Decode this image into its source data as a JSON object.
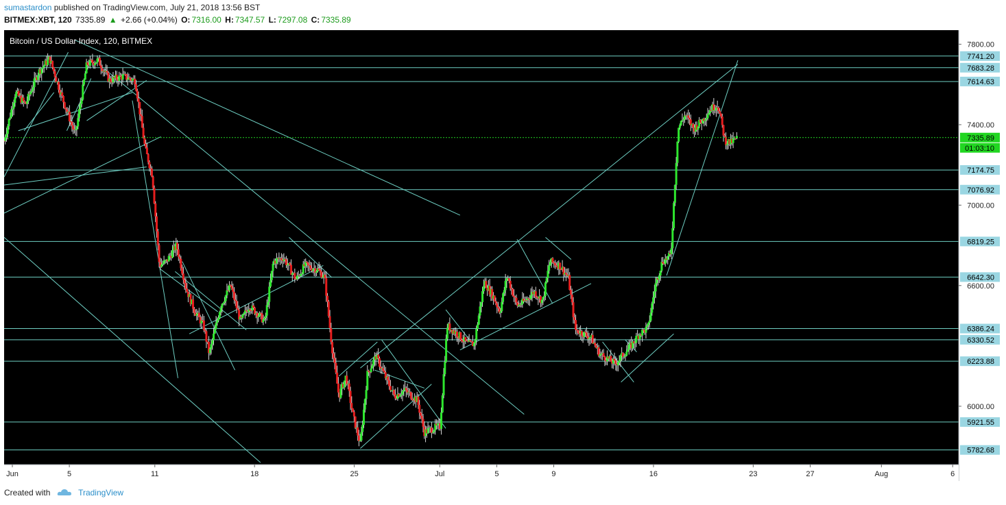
{
  "header": {
    "author": "sumastardon",
    "published_text": "published on TradingView.com, July 21, 2018 13:56 BST",
    "symbol": "BITMEX:XBT, 120",
    "last": "7335.89",
    "change": "+2.66 (+0.04%)",
    "o_label": "O:",
    "o_value": "7316.00",
    "h_label": "H:",
    "h_value": "7347.57",
    "l_label": "L:",
    "l_value": "7297.08",
    "c_label": "C:",
    "c_value": "7335.89"
  },
  "footer": {
    "created_with": "Created with",
    "brand": "TradingView"
  },
  "colors": {
    "background": "#000000",
    "up_candle": "#2ee62e",
    "down_candle": "#e61e1e",
    "wick": "#d8d8d8",
    "trendline": "#6fd0c4",
    "axis_label_bg": "#9ad6e2",
    "last_price_bg": "#22d622"
  },
  "chart_data": {
    "type": "candlestick",
    "title": "Bitcoin / US Dollar Index, 120, BITMEX",
    "ylim": [
      5710,
      7870
    ],
    "price_ticks": [
      "7800.00",
      "7400.00",
      "7000.00",
      "6600.00",
      "6000.00"
    ],
    "date_axis": [
      {
        "label": "Jun",
        "day": 0
      },
      {
        "label": "5",
        "day": 4
      },
      {
        "label": "11",
        "day": 10
      },
      {
        "label": "18",
        "day": 17
      },
      {
        "label": "25",
        "day": 24
      },
      {
        "label": "Jul",
        "day": 30
      },
      {
        "label": "5",
        "day": 34
      },
      {
        "label": "9",
        "day": 38
      },
      {
        "label": "16",
        "day": 45
      },
      {
        "label": "23",
        "day": 52
      },
      {
        "label": "27",
        "day": 56
      },
      {
        "label": "Aug",
        "day": 61
      },
      {
        "label": "6",
        "day": 66
      }
    ],
    "x_range_days": [
      0,
      67
    ],
    "horizontal_levels": [
      {
        "price": 7741.2,
        "label": "7741.20"
      },
      {
        "price": 7683.28,
        "label": "7683.28"
      },
      {
        "price": 7614.63,
        "label": "7614.63"
      },
      {
        "price": 7174.75,
        "label": "7174.75"
      },
      {
        "price": 7076.92,
        "label": "7076.92"
      },
      {
        "price": 6819.25,
        "label": "6819.25"
      },
      {
        "price": 6642.3,
        "label": "6642.30"
      },
      {
        "price": 6386.24,
        "label": "6386.24"
      },
      {
        "price": 6330.52,
        "label": "6330.52"
      },
      {
        "price": 6223.88,
        "label": "6223.88"
      },
      {
        "price": 5921.55,
        "label": "5921.55"
      },
      {
        "price": 5782.68,
        "label": "5782.68"
      }
    ],
    "last_price": {
      "price": 7335.89,
      "label": "7335.89",
      "countdown": "01:03:10"
    },
    "price_path": [
      [
        0.0,
        7320
      ],
      [
        0.8,
        7560
      ],
      [
        1.5,
        7500
      ],
      [
        2.4,
        7660
      ],
      [
        3.2,
        7730
      ],
      [
        4.0,
        7550
      ],
      [
        5.0,
        7350
      ],
      [
        5.8,
        7700
      ],
      [
        6.6,
        7720
      ],
      [
        7.4,
        7620
      ],
      [
        8.3,
        7640
      ],
      [
        9.2,
        7620
      ],
      [
        9.9,
        7280
      ],
      [
        10.4,
        7150
      ],
      [
        10.9,
        6700
      ],
      [
        11.4,
        6720
      ],
      [
        12.1,
        6800
      ],
      [
        12.8,
        6580
      ],
      [
        13.4,
        6470
      ],
      [
        14.0,
        6400
      ],
      [
        14.4,
        6260
      ],
      [
        15.2,
        6500
      ],
      [
        15.9,
        6600
      ],
      [
        16.6,
        6420
      ],
      [
        17.2,
        6500
      ],
      [
        17.8,
        6460
      ],
      [
        18.3,
        6420
      ],
      [
        18.9,
        6720
      ],
      [
        19.6,
        6740
      ],
      [
        20.5,
        6630
      ],
      [
        21.1,
        6700
      ],
      [
        22.0,
        6680
      ],
      [
        22.5,
        6640
      ],
      [
        23.0,
        6300
      ],
      [
        23.5,
        6050
      ],
      [
        24.0,
        6150
      ],
      [
        24.5,
        5950
      ],
      [
        25.0,
        5810
      ],
      [
        25.5,
        6160
      ],
      [
        26.1,
        6250
      ],
      [
        26.8,
        6140
      ],
      [
        27.4,
        6050
      ],
      [
        28.1,
        6080
      ],
      [
        29.0,
        6030
      ],
      [
        29.5,
        5870
      ],
      [
        30.1,
        5890
      ],
      [
        30.6,
        5900
      ],
      [
        31.1,
        6400
      ],
      [
        31.8,
        6360
      ],
      [
        32.5,
        6310
      ],
      [
        33.0,
        6310
      ],
      [
        33.7,
        6620
      ],
      [
        34.3,
        6550
      ],
      [
        34.8,
        6470
      ],
      [
        35.3,
        6650
      ],
      [
        36.0,
        6500
      ],
      [
        36.5,
        6520
      ],
      [
        37.2,
        6570
      ],
      [
        37.8,
        6520
      ],
      [
        38.3,
        6720
      ],
      [
        39.0,
        6700
      ],
      [
        39.6,
        6640
      ],
      [
        40.1,
        6380
      ],
      [
        40.7,
        6360
      ],
      [
        41.2,
        6340
      ],
      [
        41.8,
        6260
      ],
      [
        42.3,
        6240
      ],
      [
        42.9,
        6210
      ],
      [
        43.5,
        6260
      ],
      [
        44.0,
        6300
      ],
      [
        44.6,
        6360
      ],
      [
        45.2,
        6390
      ],
      [
        45.7,
        6600
      ],
      [
        46.2,
        6720
      ],
      [
        46.8,
        6750
      ],
      [
        47.3,
        7380
      ],
      [
        47.8,
        7450
      ],
      [
        48.4,
        7380
      ],
      [
        49.0,
        7420
      ],
      [
        49.6,
        7480
      ],
      [
        50.1,
        7500
      ],
      [
        50.6,
        7320
      ],
      [
        51.0,
        7310
      ],
      [
        51.5,
        7336
      ]
    ],
    "trendlines": [
      [
        [
          0.0,
          7140
        ],
        [
          4.5,
          7760
        ]
      ],
      [
        [
          0.0,
          6960
        ],
        [
          11.0,
          7340
        ]
      ],
      [
        [
          0.0,
          7100
        ],
        [
          10.0,
          7190
        ]
      ],
      [
        [
          0.0,
          6840
        ],
        [
          18.0,
          5720
        ]
      ],
      [
        [
          1.0,
          7370
        ],
        [
          9.0,
          7560
        ]
      ],
      [
        [
          1.4,
          7370
        ],
        [
          3.5,
          7560
        ]
      ],
      [
        [
          4.4,
          7370
        ],
        [
          6.1,
          7630
        ]
      ],
      [
        [
          5.8,
          7420
        ],
        [
          10.0,
          7620
        ]
      ],
      [
        [
          5.0,
          7820
        ],
        [
          32.0,
          6950
        ]
      ],
      [
        [
          7.0,
          7680
        ],
        [
          36.5,
          5960
        ]
      ],
      [
        [
          9.0,
          7520
        ],
        [
          12.2,
          6140
        ]
      ],
      [
        [
          11.0,
          6680
        ],
        [
          15.0,
          6470
        ]
      ],
      [
        [
          12.5,
          6720
        ],
        [
          16.2,
          6180
        ]
      ],
      [
        [
          13.0,
          6360
        ],
        [
          22.4,
          6700
        ]
      ],
      [
        [
          12.0,
          6670
        ],
        [
          17.0,
          6380
        ]
      ],
      [
        [
          20.0,
          6840
        ],
        [
          23.0,
          6640
        ]
      ],
      [
        [
          23.5,
          6150
        ],
        [
          26.2,
          6320
        ]
      ],
      [
        [
          26.0,
          6180
        ],
        [
          29.5,
          6090
        ]
      ],
      [
        [
          26.5,
          6330
        ],
        [
          31.0,
          5890
        ]
      ],
      [
        [
          25.0,
          5790
        ],
        [
          30.0,
          6110
        ]
      ],
      [
        [
          31.0,
          6480
        ],
        [
          33.0,
          6300
        ]
      ],
      [
        [
          32.0,
          6280
        ],
        [
          41.2,
          6610
        ]
      ],
      [
        [
          25.0,
          6190
        ],
        [
          51.5,
          7700
        ]
      ],
      [
        [
          36.0,
          6830
        ],
        [
          38.5,
          6510
        ]
      ],
      [
        [
          38.0,
          6840
        ],
        [
          39.8,
          6730
        ]
      ],
      [
        [
          42.0,
          6320
        ],
        [
          44.2,
          6120
        ]
      ],
      [
        [
          43.3,
          6120
        ],
        [
          47.0,
          6360
        ]
      ],
      [
        [
          43.6,
          6330
        ],
        [
          44.4,
          6270
        ]
      ],
      [
        [
          46.5,
          6650
        ],
        [
          51.5,
          7720
        ]
      ]
    ]
  }
}
